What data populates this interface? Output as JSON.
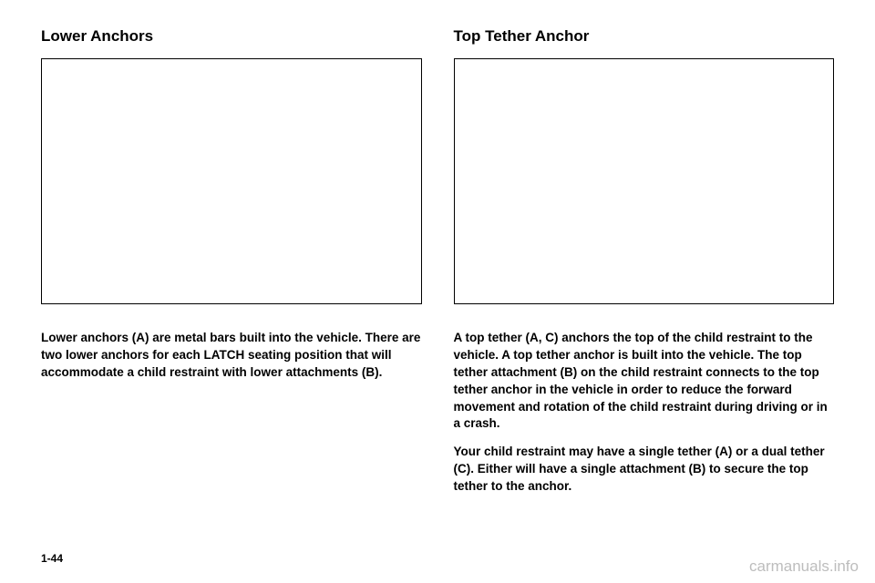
{
  "left": {
    "heading": "Lower Anchors",
    "paragraph1": "Lower anchors (A) are metal bars built into the vehicle. There are two lower anchors for each LATCH seating position that will accommodate a child restraint with lower attachments (B)."
  },
  "right": {
    "heading": "Top Tether Anchor",
    "paragraph1": "A top tether (A, C) anchors the top of the child restraint to the vehicle. A top tether anchor is built into the vehicle. The top tether attachment (B) on the child restraint connects to the top tether anchor in the vehicle in order to reduce the forward movement and rotation of the child restraint during driving or in a crash.",
    "paragraph2": "Your child restraint may have a single tether (A) or a dual tether (C). Either will have a single attachment (B) to secure the top tether to the anchor."
  },
  "page_number": "1-44",
  "watermark": "carmanuals.info"
}
